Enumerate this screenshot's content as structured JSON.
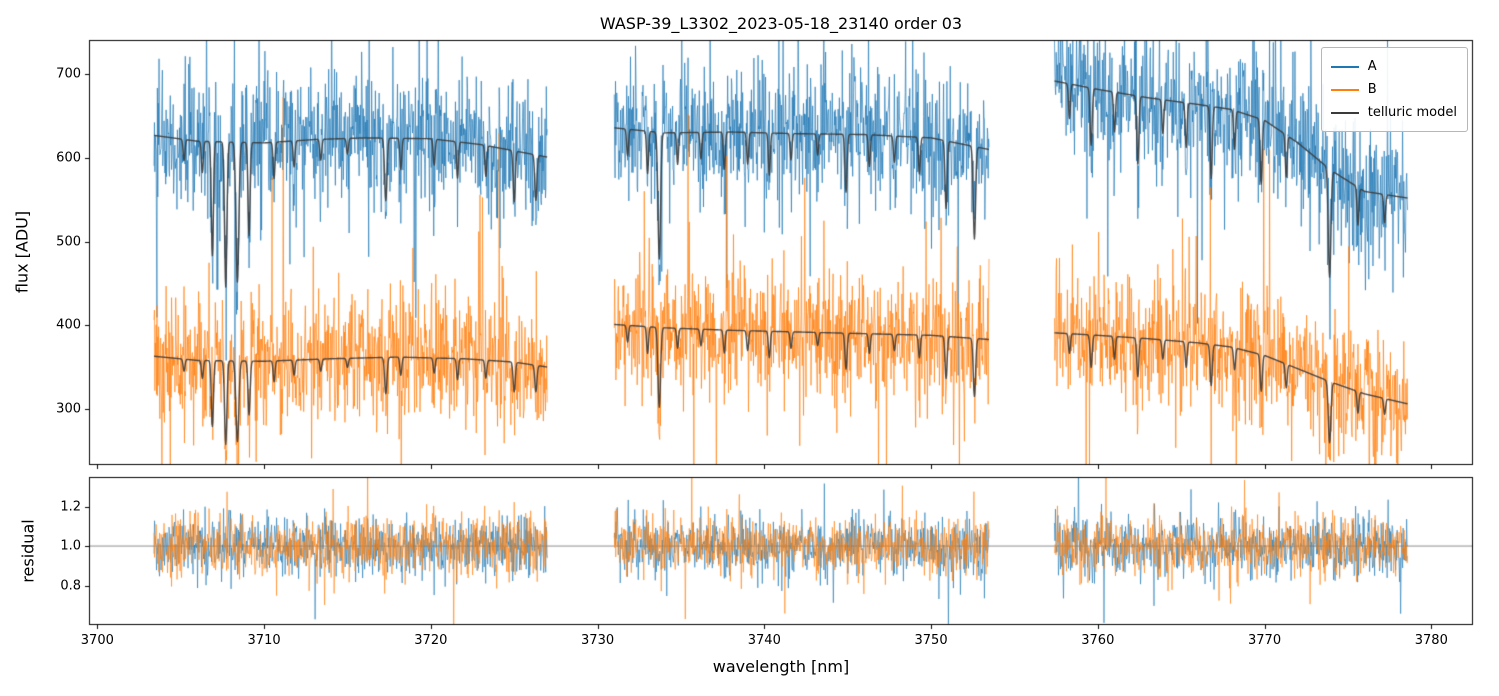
{
  "chart_data": {
    "type": "line",
    "title": "WASP-39_L3302_2023-05-18_23140  order 03",
    "xlabel": "wavelength [nm]",
    "ylabel_top": "flux [ADU]",
    "ylabel_bottom": "residual",
    "xlim": [
      3699.5,
      3782.5
    ],
    "ylim_top": [
      233,
      741
    ],
    "ylim_bottom": [
      0.6,
      1.35
    ],
    "xticks": {
      "values": [
        3700,
        3710,
        3720,
        3730,
        3740,
        3750,
        3760,
        3770,
        3780
      ],
      "labels": [
        "3700",
        "3710",
        "3720",
        "3730",
        "3740",
        "3750",
        "3760",
        "3770",
        "3780"
      ]
    },
    "yticks_top": {
      "values": [
        300,
        400,
        500,
        600,
        700
      ],
      "labels": [
        "300",
        "400",
        "500",
        "600",
        "700"
      ]
    },
    "yticks_bottom": {
      "values": [
        0.8,
        1.0,
        1.2
      ],
      "labels": [
        "0.8",
        "1.0",
        "1.2"
      ]
    },
    "legend": [
      {
        "label": "A",
        "color": "#1f77b4"
      },
      {
        "label": "B",
        "color": "#ff7f0e"
      },
      {
        "label": "telluric model",
        "color": "#3a3a3a"
      }
    ],
    "seed": 42,
    "grid": false,
    "legend_position": "upper right",
    "segments": [
      {
        "x_start": 3703.4,
        "x_end": 3727.0
      },
      {
        "x_start": 3731.0,
        "x_end": 3753.5
      },
      {
        "x_start": 3757.4,
        "x_end": 3778.6
      }
    ],
    "series": [
      {
        "name": "A",
        "color": "#1f77b4",
        "alpha": 0.75,
        "noise_sigma": 38,
        "spike_prob": 0.06,
        "spike_mult": 2.8,
        "baseline": [
          [
            3703.4,
            627
          ],
          [
            3706,
            620
          ],
          [
            3710,
            618
          ],
          [
            3713,
            622
          ],
          [
            3716,
            624
          ],
          [
            3720,
            623
          ],
          [
            3723,
            616
          ],
          [
            3727,
            601
          ],
          [
            3731,
            636
          ],
          [
            3734,
            630
          ],
          [
            3738,
            631
          ],
          [
            3742,
            629
          ],
          [
            3746,
            628
          ],
          [
            3750,
            624
          ],
          [
            3753.5,
            610
          ],
          [
            3757.4,
            692
          ],
          [
            3760,
            682
          ],
          [
            3763,
            672
          ],
          [
            3766,
            664
          ],
          [
            3768,
            658
          ],
          [
            3770,
            645
          ],
          [
            3772,
            618
          ],
          [
            3774,
            585
          ],
          [
            3776,
            560
          ],
          [
            3778.6,
            552
          ]
        ]
      },
      {
        "name": "B",
        "color": "#ff7f0e",
        "alpha": 0.75,
        "noise_sigma": 37,
        "spike_prob": 0.06,
        "spike_mult": 2.8,
        "baseline": [
          [
            3703.4,
            363
          ],
          [
            3706,
            358
          ],
          [
            3710,
            357
          ],
          [
            3714,
            360
          ],
          [
            3718,
            362
          ],
          [
            3722,
            360
          ],
          [
            3725,
            356
          ],
          [
            3727,
            350
          ],
          [
            3731,
            401
          ],
          [
            3734,
            397
          ],
          [
            3738,
            394
          ],
          [
            3742,
            392
          ],
          [
            3746,
            390
          ],
          [
            3750,
            388
          ],
          [
            3753.5,
            383
          ],
          [
            3757.4,
            391
          ],
          [
            3760,
            388
          ],
          [
            3763,
            384
          ],
          [
            3766,
            379
          ],
          [
            3768,
            374
          ],
          [
            3770,
            364
          ],
          [
            3772,
            348
          ],
          [
            3774,
            332
          ],
          [
            3776,
            318
          ],
          [
            3778.6,
            306
          ]
        ]
      }
    ],
    "telluric_model": {
      "name": "telluric model",
      "color": "#3a3a3a",
      "alpha": 0.9
    },
    "telluric_lines": [
      {
        "center": 3705.2,
        "depth": 0.04,
        "width": 0.08
      },
      {
        "center": 3706.3,
        "depth": 0.06,
        "width": 0.08
      },
      {
        "center": 3706.9,
        "depth": 0.22,
        "width": 0.09
      },
      {
        "center": 3707.7,
        "depth": 0.28,
        "width": 0.1
      },
      {
        "center": 3708.4,
        "depth": 0.27,
        "width": 0.12
      },
      {
        "center": 3709.1,
        "depth": 0.18,
        "width": 0.09
      },
      {
        "center": 3710.6,
        "depth": 0.07,
        "width": 0.08
      },
      {
        "center": 3711.8,
        "depth": 0.05,
        "width": 0.08
      },
      {
        "center": 3713.4,
        "depth": 0.04,
        "width": 0.08
      },
      {
        "center": 3715.0,
        "depth": 0.03,
        "width": 0.08
      },
      {
        "center": 3717.3,
        "depth": 0.12,
        "width": 0.1
      },
      {
        "center": 3718.2,
        "depth": 0.06,
        "width": 0.08
      },
      {
        "center": 3720.2,
        "depth": 0.05,
        "width": 0.08
      },
      {
        "center": 3721.6,
        "depth": 0.07,
        "width": 0.08
      },
      {
        "center": 3723.3,
        "depth": 0.06,
        "width": 0.08
      },
      {
        "center": 3725.0,
        "depth": 0.1,
        "width": 0.09
      },
      {
        "center": 3726.3,
        "depth": 0.09,
        "width": 0.09
      },
      {
        "center": 3731.8,
        "depth": 0.05,
        "width": 0.08
      },
      {
        "center": 3733.0,
        "depth": 0.08,
        "width": 0.08
      },
      {
        "center": 3733.7,
        "depth": 0.24,
        "width": 0.11
      },
      {
        "center": 3734.8,
        "depth": 0.06,
        "width": 0.08
      },
      {
        "center": 3736.2,
        "depth": 0.05,
        "width": 0.08
      },
      {
        "center": 3737.6,
        "depth": 0.07,
        "width": 0.08
      },
      {
        "center": 3739.0,
        "depth": 0.06,
        "width": 0.08
      },
      {
        "center": 3740.3,
        "depth": 0.08,
        "width": 0.08
      },
      {
        "center": 3741.6,
        "depth": 0.05,
        "width": 0.08
      },
      {
        "center": 3743.2,
        "depth": 0.04,
        "width": 0.08
      },
      {
        "center": 3744.9,
        "depth": 0.11,
        "width": 0.09
      },
      {
        "center": 3746.3,
        "depth": 0.06,
        "width": 0.08
      },
      {
        "center": 3747.8,
        "depth": 0.05,
        "width": 0.08
      },
      {
        "center": 3749.3,
        "depth": 0.07,
        "width": 0.08
      },
      {
        "center": 3750.9,
        "depth": 0.13,
        "width": 0.09
      },
      {
        "center": 3752.6,
        "depth": 0.18,
        "width": 0.1
      },
      {
        "center": 3758.3,
        "depth": 0.06,
        "width": 0.08
      },
      {
        "center": 3759.6,
        "depth": 0.1,
        "width": 0.09
      },
      {
        "center": 3761.0,
        "depth": 0.07,
        "width": 0.08
      },
      {
        "center": 3762.4,
        "depth": 0.12,
        "width": 0.09
      },
      {
        "center": 3763.9,
        "depth": 0.06,
        "width": 0.08
      },
      {
        "center": 3765.3,
        "depth": 0.08,
        "width": 0.08
      },
      {
        "center": 3766.8,
        "depth": 0.13,
        "width": 0.09
      },
      {
        "center": 3768.2,
        "depth": 0.07,
        "width": 0.08
      },
      {
        "center": 3769.8,
        "depth": 0.12,
        "width": 0.09
      },
      {
        "center": 3771.3,
        "depth": 0.08,
        "width": 0.08
      },
      {
        "center": 3773.9,
        "depth": 0.22,
        "width": 0.11
      },
      {
        "center": 3775.6,
        "depth": 0.08,
        "width": 0.08
      },
      {
        "center": 3777.2,
        "depth": 0.06,
        "width": 0.08
      }
    ],
    "residual": {
      "mean": 1.0,
      "sigma": 0.075,
      "spike_prob": 0.05,
      "spike_mult": 2.4,
      "reference_line": 1.0,
      "reference_color": "#808080"
    }
  }
}
